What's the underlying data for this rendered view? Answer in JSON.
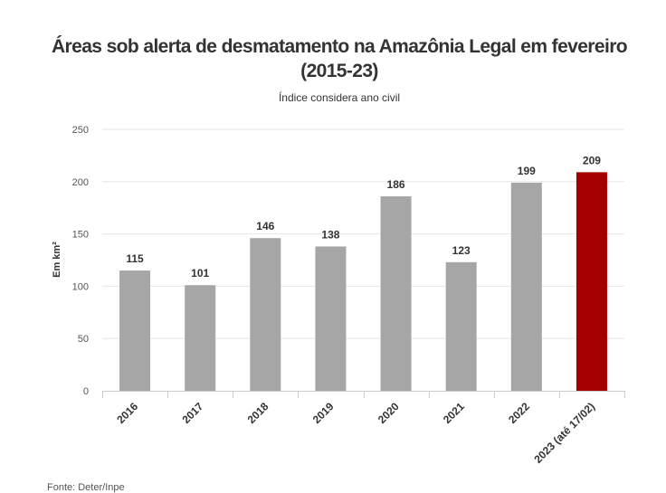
{
  "chart_data": {
    "type": "bar",
    "title_line1": "Áreas sob alerta de desmatamento na Amazônia Legal em fevereiro",
    "title_line2": "(2015-23)",
    "subtitle": "Índice considera ano civil",
    "ylabel": "Em km²",
    "xlabel": "",
    "ylim": [
      0,
      250
    ],
    "yticks": [
      0,
      50,
      100,
      150,
      200,
      250
    ],
    "categories": [
      "2016",
      "2017",
      "2018",
      "2019",
      "2020",
      "2021",
      "2022",
      "2023 (até 17/02)"
    ],
    "values": [
      115,
      101,
      146,
      138,
      186,
      123,
      199,
      209
    ],
    "colors": [
      "#a6a6a6",
      "#a6a6a6",
      "#a6a6a6",
      "#a6a6a6",
      "#a6a6a6",
      "#a6a6a6",
      "#a6a6a6",
      "#a50000"
    ],
    "grid": true,
    "source": "Fonte: Deter/Inpe"
  }
}
